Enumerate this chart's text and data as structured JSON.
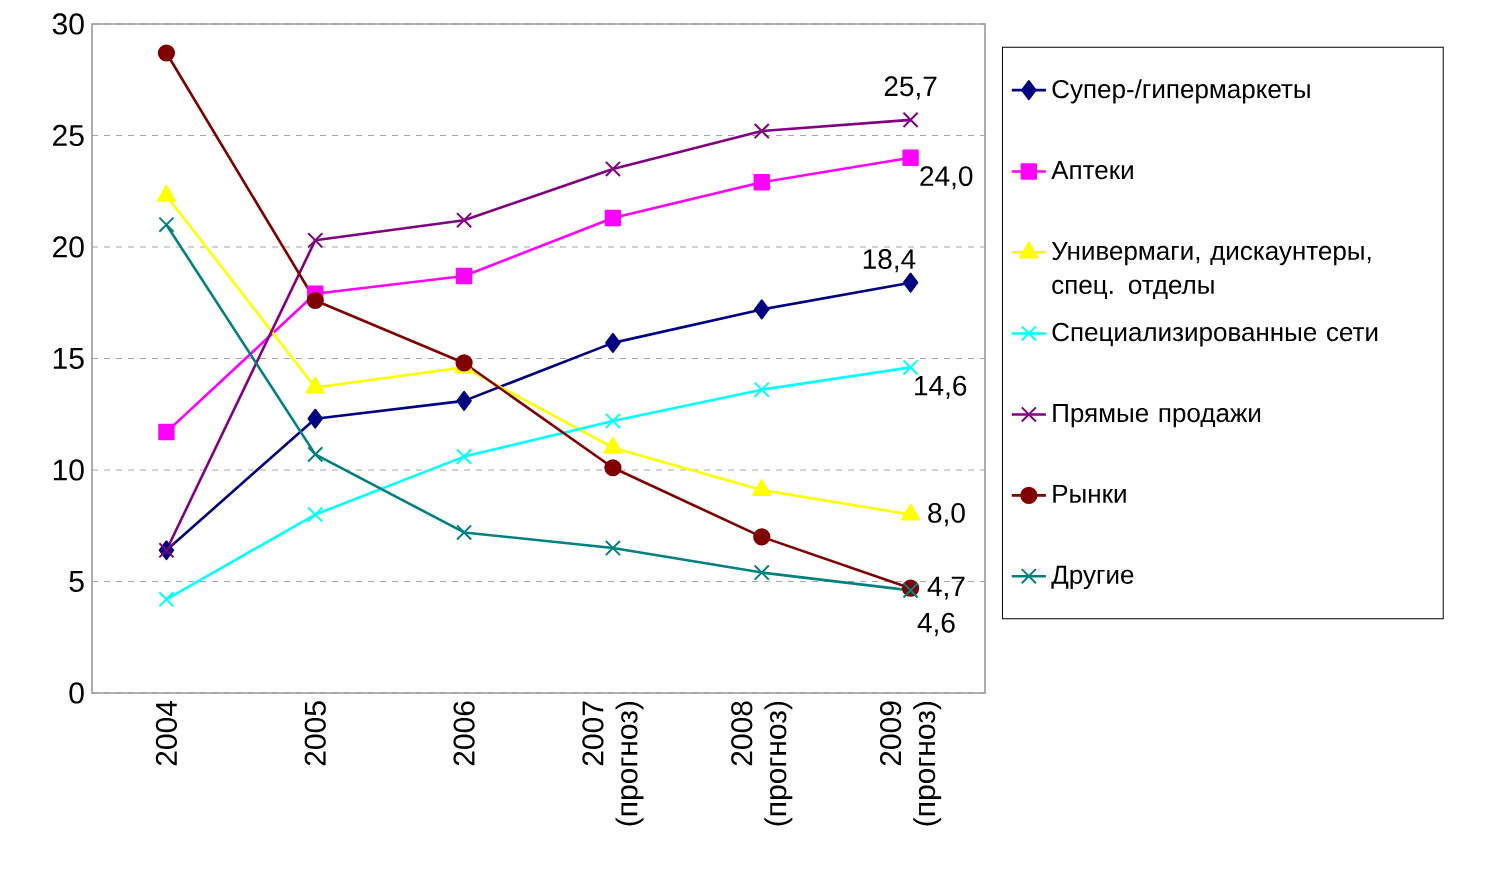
{
  "chart_data": {
    "type": "line",
    "categories": [
      "2004",
      "2005",
      "2006",
      "2007 (прогноз)",
      "2008 (прогноз)",
      "2009 (прогноз)"
    ],
    "ylim": [
      0,
      30
    ],
    "yticks": [
      0,
      5,
      10,
      15,
      20,
      25,
      30
    ],
    "grid": "y",
    "legend": "right",
    "series": [
      {
        "name": "Супер-/гипермаркеты",
        "color": "#000080",
        "marker": "diamond",
        "values": [
          6.4,
          12.3,
          13.1,
          15.7,
          17.2,
          18.4
        ],
        "value_labels": [
          null,
          null,
          null,
          null,
          null,
          "18,4"
        ]
      },
      {
        "name": "Аптеки",
        "color": "#ff00ff",
        "marker": "square",
        "values": [
          11.7,
          17.9,
          18.7,
          21.3,
          22.9,
          24.0
        ],
        "value_labels": [
          null,
          null,
          null,
          null,
          null,
          "24,0"
        ]
      },
      {
        "name": "Универмаги, дискаунтеры, спец. отделы",
        "color": "#ffff00",
        "marker": "triangle",
        "values": [
          22.3,
          13.7,
          14.6,
          11.0,
          9.1,
          8.0
        ],
        "value_labels": [
          null,
          null,
          null,
          null,
          null,
          "8,0"
        ]
      },
      {
        "name": "Специализированные сети",
        "color": "#00ffff",
        "marker": "cross",
        "values": [
          4.2,
          8.0,
          10.6,
          12.2,
          13.6,
          14.6
        ],
        "value_labels": [
          null,
          null,
          null,
          null,
          null,
          "14,6"
        ]
      },
      {
        "name": "Прямые продажи",
        "color": "#800080",
        "marker": "cross",
        "values": [
          6.4,
          20.3,
          21.2,
          23.5,
          25.2,
          25.7
        ],
        "value_labels": [
          null,
          null,
          null,
          null,
          null,
          "25,7"
        ]
      },
      {
        "name": "Рынки",
        "color": "#800000",
        "marker": "circle",
        "values": [
          28.7,
          17.6,
          14.8,
          10.1,
          7.0,
          4.7
        ],
        "value_labels": [
          null,
          null,
          null,
          null,
          null,
          "4,7"
        ]
      },
      {
        "name": "Другие",
        "color": "#008080",
        "marker": "cross",
        "values": [
          21.0,
          10.7,
          7.2,
          6.5,
          5.4,
          4.6
        ],
        "value_labels": [
          null,
          null,
          null,
          null,
          null,
          "4,6"
        ]
      }
    ]
  }
}
